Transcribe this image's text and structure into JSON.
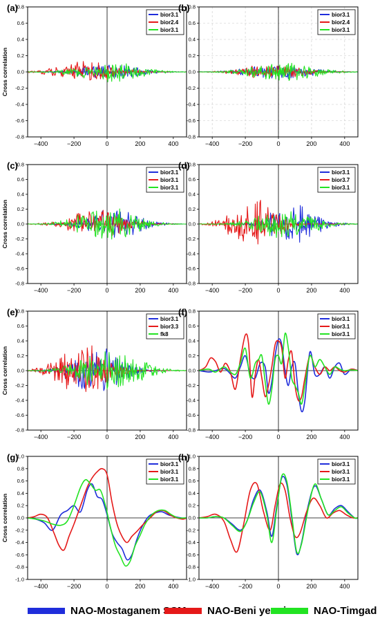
{
  "figure": {
    "series_colors": [
      "#1f2ddb",
      "#e51919",
      "#22e322"
    ],
    "legend": [
      {
        "label": "NAO-Mostaganem SCM",
        "color": "#1f2ddb"
      },
      {
        "label": "NAO-Beni yenni",
        "color": "#e51919"
      },
      {
        "label": "NAO-Timgad",
        "color": "#22e322"
      }
    ]
  },
  "chart_data": [
    {
      "panel": "(a)",
      "type": "line",
      "ylabel": "Cross correlation",
      "xlabel": "",
      "xlim": [
        -480,
        480
      ],
      "ylim": [
        -0.8,
        0.8
      ],
      "xticks": [
        "−400",
        "−200",
        "0",
        "200",
        "400"
      ],
      "yticks": [
        "-0.8",
        "-0.6",
        "-0.4",
        "-0.2",
        "0.0",
        "0.2",
        "0.4",
        "0.6",
        "0.8"
      ],
      "series": [
        {
          "name": "bior3.1"
        },
        {
          "name": "bior2.4"
        },
        {
          "name": "bior3.1"
        }
      ],
      "peak_abs_corr": 0.16,
      "grid": false
    },
    {
      "panel": "(b)",
      "type": "line",
      "ylabel": "",
      "xlabel": "",
      "xlim": [
        -480,
        480
      ],
      "ylim": [
        -0.8,
        0.8
      ],
      "xticks": [
        "−400",
        "−200",
        "0",
        "200",
        "400"
      ],
      "yticks": [
        "-0.8",
        "-0.6",
        "-0.4",
        "-0.2",
        "0.0",
        "0.2",
        "0.4",
        "0.6",
        "0.8"
      ],
      "series": [
        {
          "name": "bior3.1"
        },
        {
          "name": "bior2.4"
        },
        {
          "name": "bior3.1"
        }
      ],
      "peak_abs_corr": 0.14,
      "grid": true
    },
    {
      "panel": "(c)",
      "type": "line",
      "ylabel": "Cross correlation",
      "xlabel": "",
      "xlim": [
        -480,
        480
      ],
      "ylim": [
        -0.8,
        0.8
      ],
      "xticks": [
        "−400",
        "−200",
        "0",
        "200",
        "400"
      ],
      "yticks": [
        "-0.8",
        "-0.6",
        "-0.4",
        "-0.2",
        "0.0",
        "0.2",
        "0.4",
        "0.6",
        "0.8"
      ],
      "series": [
        {
          "name": "bior3.1"
        },
        {
          "name": "bior3.1"
        },
        {
          "name": "bior3.1"
        }
      ],
      "peak_abs_corr": 0.3,
      "grid": false
    },
    {
      "panel": "(d)",
      "type": "line",
      "ylabel": "",
      "xlabel": "",
      "xlim": [
        -480,
        480
      ],
      "ylim": [
        -0.8,
        0.8
      ],
      "xticks": [
        "−400",
        "−200",
        "0",
        "200",
        "400"
      ],
      "yticks": [
        "-0.8",
        "-0.6",
        "-0.4",
        "-0.2",
        "0.0",
        "0.2",
        "0.4",
        "0.6",
        "0.8"
      ],
      "series": [
        {
          "name": "bior3.1"
        },
        {
          "name": "bior3.7"
        },
        {
          "name": "bior3.1"
        }
      ],
      "peak_abs_corr": 0.48,
      "grid": false
    },
    {
      "panel": "(e)",
      "type": "line",
      "ylabel": "Cross correlation",
      "xlabel": "",
      "xlim": [
        -480,
        480
      ],
      "ylim": [
        -0.8,
        0.8
      ],
      "xticks": [
        "−400",
        "−200",
        "0",
        "200",
        "400"
      ],
      "yticks": [
        "-0.8",
        "-0.6",
        "-0.4",
        "-0.2",
        "0.0",
        "0.2",
        "0.4",
        "0.6",
        "0.8"
      ],
      "series": [
        {
          "name": "bior3.1"
        },
        {
          "name": "bior3.3"
        },
        {
          "name": "fk8"
        }
      ],
      "peak_abs_corr": 0.45,
      "grid": false
    },
    {
      "panel": "(f)",
      "type": "line",
      "ylabel": "",
      "xlabel": "",
      "xlim": [
        -480,
        480
      ],
      "ylim": [
        -0.8,
        0.8
      ],
      "xticks": [
        "−400",
        "−200",
        "0",
        "200",
        "400"
      ],
      "yticks": [
        "-0.8",
        "-0.6",
        "-0.4",
        "-0.2",
        "0.0",
        "0.2",
        "0.4",
        "0.6",
        "0.8"
      ],
      "series": [
        {
          "name": "bior3.1",
          "x": [
            -480,
            -420,
            -380,
            -330,
            -300,
            -260,
            -230,
            -200,
            -170,
            -140,
            -110,
            -80,
            -60,
            -40,
            -20,
            0,
            20,
            40,
            60,
            80,
            100,
            120,
            140,
            160,
            190,
            220,
            250,
            280,
            310,
            340,
            370,
            400,
            440,
            480
          ],
          "y": [
            0,
            -0.02,
            0,
            0.03,
            -0.02,
            -0.1,
            0.05,
            0.2,
            -0.05,
            -0.1,
            0.1,
            0.05,
            -0.3,
            -0.15,
            0.2,
            0.42,
            0.35,
            0.0,
            -0.2,
            0.05,
            0.1,
            -0.3,
            -0.55,
            -0.4,
            0.25,
            -0.05,
            -0.05,
            0.05,
            -0.1,
            0.05,
            0.1,
            -0.05,
            0.02,
            0
          ]
        },
        {
          "name": "bior3.1",
          "x": [
            -480,
            -440,
            -410,
            -380,
            -350,
            -320,
            -290,
            -260,
            -230,
            -200,
            -180,
            -160,
            -140,
            -120,
            -100,
            -80,
            -60,
            -40,
            -20,
            0,
            20,
            40,
            60,
            80,
            100,
            120,
            140,
            160,
            190,
            220,
            250,
            280,
            310,
            340,
            370,
            400,
            440,
            480
          ],
          "y": [
            0,
            0.05,
            0.17,
            0.12,
            -0.02,
            0.1,
            -0.02,
            -0.25,
            0.15,
            0.48,
            0.35,
            -0.35,
            -0.05,
            0.15,
            -0.1,
            -0.35,
            -0.2,
            0.05,
            0.35,
            0.4,
            0.3,
            -0.1,
            0.15,
            0.25,
            -0.2,
            -0.4,
            -0.35,
            -0.1,
            0.2,
            0.05,
            -0.05,
            0.05,
            0.0,
            0.05,
            0.0,
            -0.02,
            0.02,
            0
          ]
        },
        {
          "name": "bior3.1",
          "x": [
            -480,
            -420,
            -380,
            -330,
            -300,
            -260,
            -230,
            -200,
            -170,
            -140,
            -120,
            -100,
            -80,
            -60,
            -40,
            -20,
            0,
            20,
            40,
            60,
            80,
            100,
            120,
            140,
            160,
            190,
            220,
            250,
            280,
            310,
            340,
            370,
            400,
            440,
            480
          ],
          "y": [
            0,
            0.02,
            -0.02,
            0.05,
            0.0,
            -0.05,
            0.1,
            0.3,
            -0.1,
            0.1,
            0.15,
            0.2,
            -0.15,
            -0.45,
            -0.25,
            0.15,
            0.2,
            0.1,
            0.5,
            0.3,
            -0.1,
            -0.2,
            -0.3,
            -0.45,
            -0.2,
            0.2,
            0.05,
            0.15,
            0.05,
            -0.05,
            0.05,
            0.02,
            0.0,
            0.01,
            0
          ]
        }
      ],
      "grid": false
    },
    {
      "panel": "(g)",
      "type": "line",
      "ylabel": "Cross correlation",
      "xlabel": "",
      "xlim": [
        -480,
        480
      ],
      "ylim": [
        -1.0,
        1.0
      ],
      "xticks": [
        "−400",
        "−200",
        "0",
        "200",
        "400"
      ],
      "yticks": [
        "-1.0",
        "-0.8",
        "-0.6",
        "-0.4",
        "-0.2",
        "0.0",
        "0.2",
        "0.4",
        "0.6",
        "0.8",
        "1.0"
      ],
      "series": [
        {
          "name": "bior3.1",
          "x": [
            -480,
            -430,
            -380,
            -330,
            -280,
            -240,
            -200,
            -160,
            -120,
            -90,
            -60,
            -30,
            0,
            30,
            60,
            90,
            120,
            150,
            180,
            210,
            250,
            290,
            330,
            370,
            410,
            450,
            480
          ],
          "y": [
            0,
            -0.02,
            -0.08,
            -0.2,
            0.05,
            0.12,
            0.2,
            0.1,
            0.45,
            0.55,
            0.35,
            0.3,
            0.05,
            -0.25,
            -0.4,
            -0.5,
            -0.68,
            -0.6,
            -0.35,
            -0.15,
            0.02,
            0.08,
            0.1,
            0.05,
            0.02,
            0.0,
            0
          ]
        },
        {
          "name": "bior3.1",
          "x": [
            -480,
            -440,
            -400,
            -360,
            -320,
            -290,
            -260,
            -230,
            -200,
            -160,
            -120,
            -90,
            -60,
            -30,
            0,
            30,
            60,
            90,
            120,
            150,
            180,
            220,
            260,
            300,
            340,
            380,
            420,
            460,
            480
          ],
          "y": [
            0,
            0.02,
            0.06,
            0.0,
            -0.25,
            -0.45,
            -0.52,
            -0.3,
            -0.1,
            0.2,
            0.5,
            0.65,
            0.75,
            0.8,
            0.7,
            0.25,
            -0.1,
            -0.3,
            -0.4,
            -0.3,
            -0.22,
            -0.1,
            0.0,
            0.1,
            0.12,
            0.05,
            0.0,
            -0.02,
            0
          ]
        },
        {
          "name": "bior3.1",
          "x": [
            -480,
            -430,
            -380,
            -330,
            -280,
            -240,
            -200,
            -160,
            -130,
            -100,
            -70,
            -40,
            -10,
            20,
            50,
            80,
            110,
            140,
            170,
            200,
            230,
            270,
            310,
            350,
            390,
            430,
            480
          ],
          "y": [
            0,
            -0.02,
            -0.05,
            -0.1,
            -0.12,
            -0.05,
            0.2,
            0.5,
            0.62,
            0.55,
            0.45,
            0.45,
            0.2,
            -0.15,
            -0.45,
            -0.62,
            -0.78,
            -0.7,
            -0.45,
            -0.28,
            -0.1,
            0.05,
            0.12,
            0.12,
            0.05,
            0.0,
            0
          ]
        }
      ],
      "grid": false
    },
    {
      "panel": "(h)",
      "type": "line",
      "ylabel": "",
      "xlabel": "",
      "xlim": [
        -480,
        480
      ],
      "ylim": [
        -1.0,
        1.0
      ],
      "xticks": [
        "−400",
        "−200",
        "0",
        "200",
        "400"
      ],
      "yticks": [
        "-1.0",
        "-0.8",
        "-0.6",
        "-0.4",
        "-0.2",
        "0.0",
        "0.2",
        "0.4",
        "0.6",
        "0.8",
        "1.0"
      ],
      "series": [
        {
          "name": "bior3.1",
          "x": [
            -480,
            -430,
            -380,
            -330,
            -280,
            -230,
            -190,
            -150,
            -110,
            -70,
            -40,
            -10,
            20,
            50,
            80,
            110,
            140,
            180,
            220,
            260,
            300,
            340,
            380,
            420,
            460,
            480
          ],
          "y": [
            0,
            0.0,
            0.02,
            0.0,
            -0.1,
            -0.2,
            -0.05,
            0.3,
            0.45,
            0.1,
            -0.3,
            0.2,
            0.65,
            0.55,
            0.0,
            -0.58,
            -0.4,
            0.2,
            0.52,
            0.3,
            0.05,
            0.15,
            0.2,
            0.1,
            0.0,
            0
          ]
        },
        {
          "name": "bior3.1",
          "x": [
            -480,
            -430,
            -380,
            -330,
            -290,
            -250,
            -210,
            -170,
            -130,
            -90,
            -50,
            -20,
            10,
            40,
            70,
            100,
            130,
            170,
            210,
            250,
            290,
            330,
            370,
            410,
            450,
            480
          ],
          "y": [
            0,
            0.02,
            0.06,
            -0.05,
            -0.35,
            -0.55,
            -0.1,
            0.45,
            0.55,
            0.1,
            -0.2,
            0.2,
            0.55,
            0.45,
            0.0,
            -0.3,
            -0.25,
            0.1,
            0.32,
            0.2,
            0.0,
            0.08,
            0.12,
            0.05,
            0.0,
            0
          ]
        },
        {
          "name": "bior3.1",
          "x": [
            -480,
            -430,
            -380,
            -330,
            -280,
            -230,
            -190,
            -150,
            -110,
            -70,
            -40,
            -10,
            20,
            50,
            80,
            110,
            140,
            180,
            220,
            260,
            300,
            340,
            380,
            420,
            460,
            480
          ],
          "y": [
            0,
            0.0,
            0.02,
            0.0,
            -0.12,
            -0.22,
            -0.05,
            0.25,
            0.42,
            0.05,
            -0.4,
            0.15,
            0.68,
            0.6,
            0.05,
            -0.55,
            -0.42,
            0.15,
            0.55,
            0.3,
            0.05,
            0.12,
            0.18,
            0.08,
            0.0,
            0
          ]
        }
      ],
      "grid": false
    }
  ]
}
